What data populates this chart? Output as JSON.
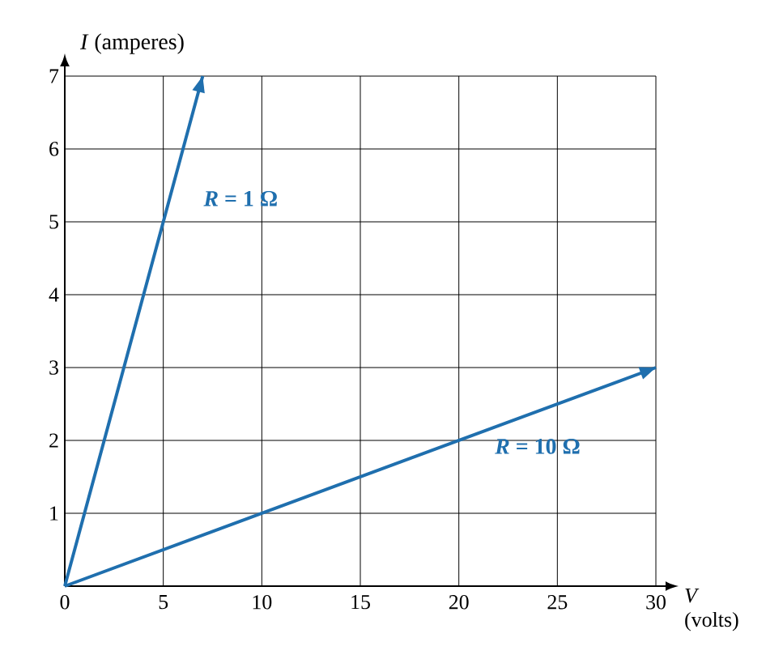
{
  "chart_data": {
    "type": "line",
    "xlabel": "*V* (volts)",
    "ylabel": "*I* (amperes)",
    "xlim": [
      0,
      30
    ],
    "ylim": [
      0,
      7
    ],
    "xticks": [
      0,
      5,
      10,
      15,
      20,
      25,
      30
    ],
    "yticks": [
      {
        "value": 0,
        "label": null
      },
      1,
      2,
      3,
      4,
      5,
      6,
      7
    ],
    "grid": true,
    "marker": "none",
    "line_style": "solid",
    "series": [
      {
        "name": "*R* = 1 Ω",
        "color": "#1f6fae",
        "x": [
          0,
          7
        ],
        "values": [
          0,
          7
        ]
      },
      {
        "name": "*R* = 10 Ω",
        "color": "#1f6fae",
        "x": [
          0,
          30
        ],
        "values": [
          0,
          3
        ]
      }
    ]
  }
}
